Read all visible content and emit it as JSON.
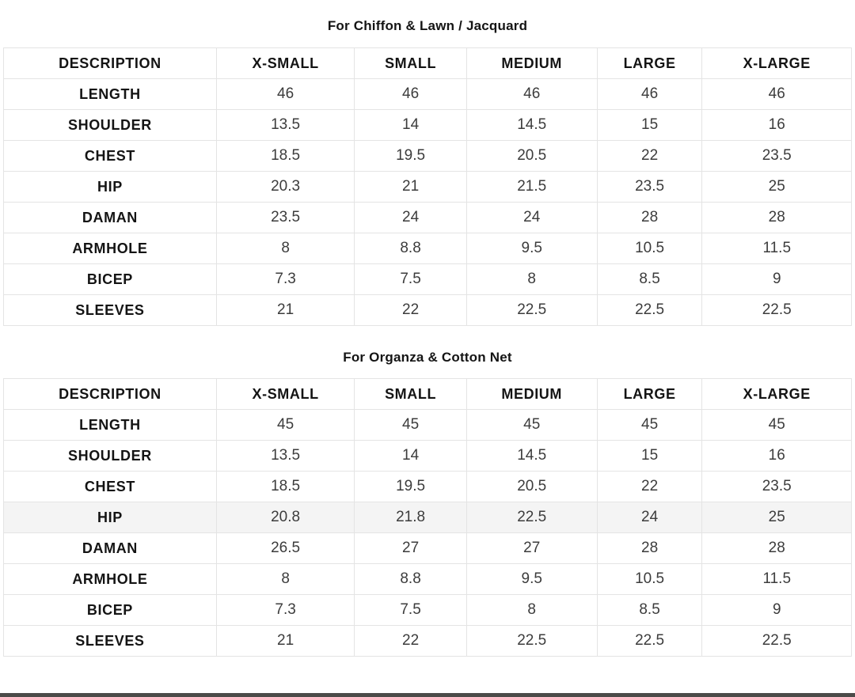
{
  "chart_data": [
    {
      "type": "table",
      "title": "For Chiffon & Lawn / Jacquard",
      "columns": [
        "DESCRIPTION",
        "X-SMALL",
        "SMALL",
        "MEDIUM",
        "LARGE",
        "X-LARGE"
      ],
      "rows": [
        {
          "label": "LENGTH",
          "values": [
            "46",
            "46",
            "46",
            "46",
            "46"
          ],
          "highlight": false
        },
        {
          "label": "SHOULDER",
          "values": [
            "13.5",
            "14",
            "14.5",
            "15",
            "16"
          ],
          "highlight": false
        },
        {
          "label": "CHEST",
          "values": [
            "18.5",
            "19.5",
            "20.5",
            "22",
            "23.5"
          ],
          "highlight": false
        },
        {
          "label": "HIP",
          "values": [
            "20.3",
            "21",
            "21.5",
            "23.5",
            "25"
          ],
          "highlight": false
        },
        {
          "label": "DAMAN",
          "values": [
            "23.5",
            "24",
            "24",
            "28",
            "28"
          ],
          "highlight": false
        },
        {
          "label": "ARMHOLE",
          "values": [
            "8",
            "8.8",
            "9.5",
            "10.5",
            "11.5"
          ],
          "highlight": false
        },
        {
          "label": "BICEP",
          "values": [
            "7.3",
            "7.5",
            "8",
            "8.5",
            "9"
          ],
          "highlight": false
        },
        {
          "label": "SLEEVES",
          "values": [
            "21",
            "22",
            "22.5",
            "22.5",
            "22.5"
          ],
          "highlight": false
        }
      ]
    },
    {
      "type": "table",
      "title": "For Organza & Cotton Net",
      "columns": [
        "DESCRIPTION",
        "X-SMALL",
        "SMALL",
        "MEDIUM",
        "LARGE",
        "X-LARGE"
      ],
      "rows": [
        {
          "label": "LENGTH",
          "values": [
            "45",
            "45",
            "45",
            "45",
            "45"
          ],
          "highlight": false
        },
        {
          "label": "SHOULDER",
          "values": [
            "13.5",
            "14",
            "14.5",
            "15",
            "16"
          ],
          "highlight": false
        },
        {
          "label": "CHEST",
          "values": [
            "18.5",
            "19.5",
            "20.5",
            "22",
            "23.5"
          ],
          "highlight": false
        },
        {
          "label": "HIP",
          "values": [
            "20.8",
            "21.8",
            "22.5",
            "24",
            "25"
          ],
          "highlight": true
        },
        {
          "label": "DAMAN",
          "values": [
            "26.5",
            "27",
            "27",
            "28",
            "28"
          ],
          "highlight": false
        },
        {
          "label": "ARMHOLE",
          "values": [
            "8",
            "8.8",
            "9.5",
            "10.5",
            "11.5"
          ],
          "highlight": false
        },
        {
          "label": "BICEP",
          "values": [
            "7.3",
            "7.5",
            "8",
            "8.5",
            "9"
          ],
          "highlight": false
        },
        {
          "label": "SLEEVES",
          "values": [
            "21",
            "22",
            "22.5",
            "22.5",
            "22.5"
          ],
          "highlight": false
        }
      ]
    }
  ],
  "colors": {
    "row_highlight": "#f4f4f4",
    "table_border": "#e4e4e4",
    "footer_bar": "#4b4b49",
    "heading_text": "#141414",
    "value_text": "#3c3c3c"
  }
}
